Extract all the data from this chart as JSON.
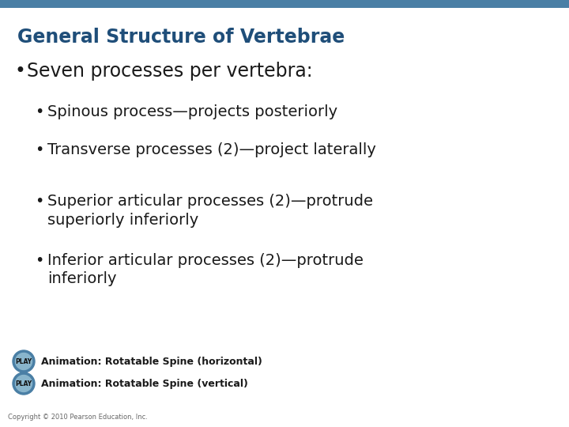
{
  "title": "General Structure of Vertebrae",
  "title_color": "#1F4E79",
  "top_bar_color": "#4A7FA5",
  "background_color": "#FFFFFF",
  "bullet1": "Seven processes per vertebra:",
  "bullet1_color": "#1a1a1a",
  "sub_bullets": [
    "Spinous process—projects posteriorly",
    "Transverse processes (2)—project laterally",
    "Superior articular processes (2)—protrude\nsuperiorly inferiorly",
    "Inferior articular processes (2)—protrude\ninferiorly"
  ],
  "sub_bullet_color": "#1a1a1a",
  "play_button_color_outer": "#4A7FA5",
  "play_button_color_inner": "#89B5CC",
  "play_text_color": "#1a1a1a",
  "play_label1": "Animation: Rotatable Spine (horizontal)",
  "play_label2": "Animation: Rotatable Spine (vertical)",
  "copyright": "Copyright © 2010 Pearson Education, Inc.",
  "copyright_color": "#666666"
}
